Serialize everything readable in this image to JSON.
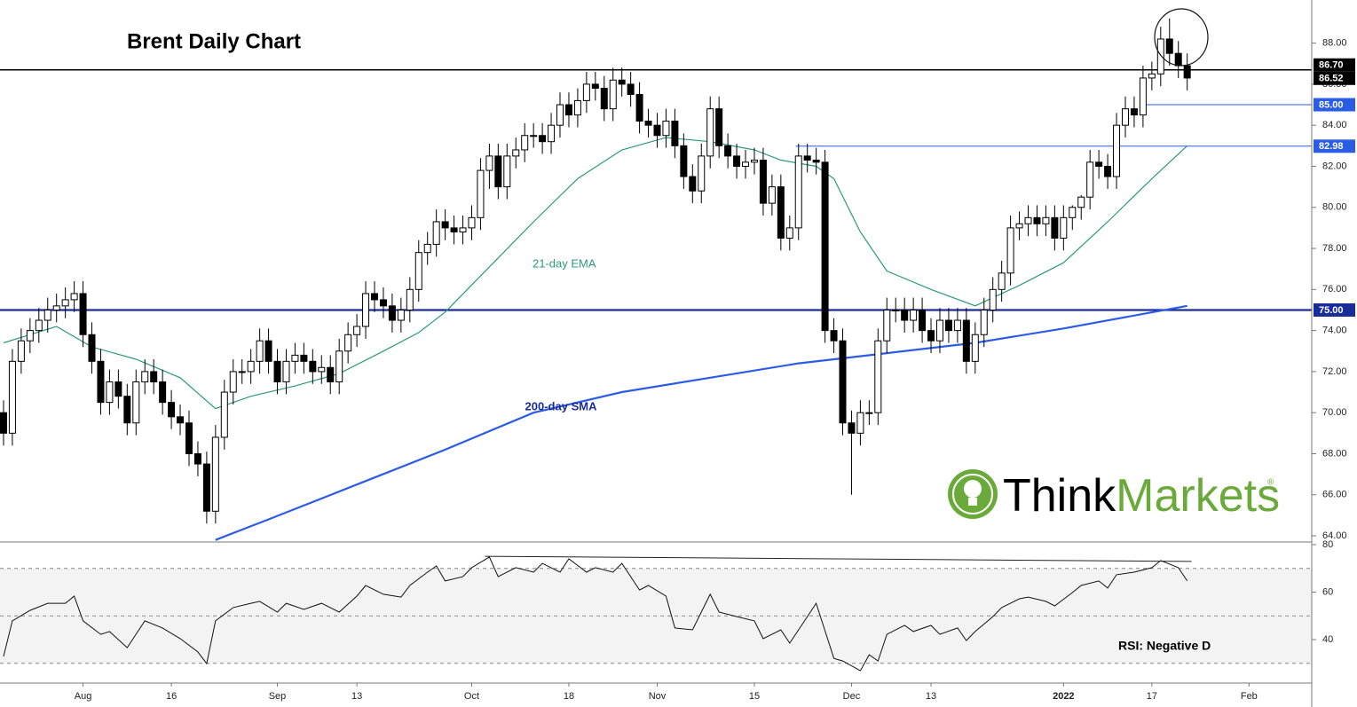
{
  "chart_data": [
    {
      "type": "candlestick",
      "title": "Brent Daily Chart",
      "open": [
        70,
        69,
        72.5,
        73.5,
        74,
        74.5,
        75,
        75.2,
        75.5,
        75.8,
        73.8,
        72.5,
        70.5,
        71.5,
        70.8,
        69.5,
        71.5,
        72,
        71.5,
        70.5,
        69.8,
        69.5,
        68,
        67.5,
        65.2,
        68.8,
        71,
        72,
        72,
        72.5,
        73.5,
        72.5,
        71.5,
        72.5,
        72.8,
        72.5,
        72,
        72.2,
        71.5,
        73,
        73.8,
        74.2,
        75.8,
        75.5,
        75.2,
        74.5,
        75,
        76,
        77.8,
        78.2,
        79.3,
        79,
        78.8,
        79,
        79.5,
        81.8,
        82.5,
        81,
        82.5,
        82.8,
        83.5,
        83.5,
        83.2,
        84,
        85,
        84.5,
        85.2,
        86,
        85.8,
        84.8,
        86.2,
        86,
        85.5,
        84.2,
        84,
        83.5,
        84.2,
        83,
        81.5,
        80.8,
        82.5,
        84.8,
        83,
        82.5,
        82,
        82.2,
        82.3,
        80.2,
        81,
        78.5,
        79,
        82.5,
        82.3,
        82.2,
        74,
        73.5,
        69.5,
        69,
        70,
        70,
        73.5,
        75,
        75,
        74.5,
        75,
        74,
        73.5,
        74.5,
        74,
        74.5,
        72.5,
        73.8,
        75,
        76,
        76.8,
        79,
        79.2,
        79.5,
        79.2,
        79.5,
        78.5,
        79.5,
        80,
        80.5,
        82.2,
        82,
        81.5,
        84,
        84.8,
        84.5,
        86.3,
        86.5,
        88.2,
        87.5,
        86.9
      ],
      "high": [
        70.6,
        73.1,
        74.1,
        74.6,
        75.1,
        75.6,
        75.8,
        76.1,
        76.4,
        76.4,
        74.4,
        73.1,
        72.1,
        72.1,
        71.4,
        72.1,
        72.6,
        72.6,
        72.1,
        71.1,
        70.4,
        70.1,
        68.6,
        68.1,
        69.4,
        71.6,
        72.6,
        72.6,
        73.1,
        74.1,
        74.1,
        73.1,
        73.1,
        73.4,
        73.4,
        73.1,
        72.8,
        72.8,
        73.6,
        74.4,
        74.8,
        76.4,
        76.4,
        76.1,
        75.8,
        75.6,
        76.6,
        78.4,
        78.8,
        79.9,
        79.9,
        79.6,
        79.6,
        80.1,
        82.4,
        83.1,
        83.1,
        83.1,
        83.4,
        84.1,
        84.1,
        84.1,
        84.6,
        85.6,
        85.6,
        85.8,
        86.6,
        86.6,
        86.4,
        86.8,
        86.8,
        86.6,
        86.1,
        84.8,
        84.6,
        84.8,
        84.8,
        83.6,
        82.1,
        83.1,
        85.4,
        85.4,
        83.6,
        83.1,
        82.8,
        82.9,
        82.9,
        81.6,
        81.6,
        79.6,
        83.1,
        83.1,
        82.9,
        82.8,
        74.6,
        74.1,
        70.1,
        70.6,
        70.6,
        74.1,
        75.6,
        75.6,
        75.6,
        75.6,
        75.6,
        74.6,
        75.1,
        75.1,
        75.1,
        75.1,
        74.4,
        75.6,
        76.6,
        77.4,
        79.6,
        79.8,
        80.1,
        80.1,
        80.1,
        80.1,
        80.1,
        80.1,
        80.6,
        82.8,
        82.8,
        82.6,
        84.6,
        85.4,
        85.4,
        86.9,
        87.1,
        88.8,
        89.2,
        88.1,
        87.5
      ],
      "low": [
        68.4,
        68.4,
        71.9,
        72.9,
        73.4,
        73.9,
        74.4,
        74.6,
        74.9,
        73.2,
        71.9,
        69.9,
        69.9,
        70.2,
        68.9,
        68.9,
        70.9,
        70.9,
        69.9,
        69.2,
        68.9,
        67.4,
        66.9,
        64.6,
        64.6,
        68.2,
        70.4,
        71.4,
        71.4,
        71.9,
        71.9,
        70.9,
        70.9,
        71.9,
        71.9,
        71.4,
        71.4,
        70.9,
        70.9,
        72.4,
        73.2,
        73.6,
        74.9,
        74.6,
        73.9,
        73.9,
        74.4,
        75.4,
        77.2,
        77.6,
        78.4,
        78.2,
        78.2,
        78.4,
        78.9,
        80.9,
        80.4,
        80.4,
        81.9,
        82.2,
        82.9,
        82.6,
        82.6,
        83.4,
        83.9,
        83.9,
        84.6,
        85.2,
        84.2,
        84.2,
        85.4,
        84.9,
        83.6,
        83.4,
        82.9,
        82.9,
        82.4,
        80.9,
        80.2,
        80.2,
        81.9,
        82.4,
        81.9,
        81.4,
        81.4,
        81.6,
        79.6,
        79.6,
        77.9,
        77.9,
        78.4,
        81.7,
        81.6,
        73.4,
        72.9,
        68.9,
        66,
        68.4,
        69.4,
        69.4,
        72.9,
        74.4,
        73.9,
        73.9,
        73.4,
        72.9,
        72.9,
        73.4,
        73.4,
        71.9,
        71.9,
        73.2,
        74.4,
        75.4,
        76.2,
        78.4,
        78.6,
        78.6,
        78.6,
        77.9,
        77.9,
        78.9,
        79.4,
        79.9,
        81.4,
        80.9,
        80.9,
        83.4,
        83.9,
        83.9,
        85.7,
        85.9,
        86.9,
        86.3,
        85.7
      ],
      "close": [
        69,
        72.5,
        73.5,
        74,
        74.5,
        75,
        75.2,
        75.5,
        75.8,
        73.8,
        72.5,
        70.5,
        71.5,
        70.8,
        69.5,
        71.5,
        72,
        71.5,
        70.5,
        69.8,
        69.5,
        68,
        67.5,
        65.2,
        68.8,
        71,
        72,
        72,
        72.5,
        73.5,
        72.5,
        71.5,
        72.5,
        72.8,
        72.5,
        72,
        72.2,
        71.5,
        73,
        73.8,
        74.2,
        75.8,
        75.5,
        75.2,
        74.5,
        75,
        76,
        77.8,
        78.2,
        79.3,
        79,
        78.8,
        79,
        79.5,
        81.8,
        82.5,
        81,
        82.5,
        82.8,
        83.5,
        83.5,
        83.2,
        84,
        85,
        84.5,
        85.2,
        86,
        85.8,
        84.8,
        86.2,
        86,
        85.5,
        84.2,
        84,
        83.5,
        84.2,
        83,
        81.5,
        80.8,
        82.5,
        84.8,
        83,
        82.5,
        82,
        82.2,
        82.3,
        80.2,
        81,
        78.5,
        79,
        82.5,
        82.3,
        82.2,
        74,
        73.5,
        69.5,
        69,
        70,
        70,
        73.5,
        75,
        75,
        74.5,
        75,
        74,
        73.5,
        74.5,
        74,
        74.5,
        72.5,
        73.8,
        75,
        76,
        76.8,
        79,
        79.2,
        79.5,
        79.2,
        79.5,
        78.5,
        79.5,
        80,
        80.5,
        82.2,
        82,
        81.5,
        84,
        84.8,
        84.5,
        86.3,
        86.5,
        88.2,
        87.5,
        86.9,
        86.3
      ],
      "up_color": "#ffffff",
      "down_color": "#000000",
      "xlim": [
        -0.4,
        148.1
      ],
      "ylim": [
        63.7,
        90.1
      ],
      "yticks": [
        {
          "value": 64,
          "label": "64.00"
        },
        {
          "value": 66,
          "label": "66.00"
        },
        {
          "value": 68,
          "label": "68.00"
        },
        {
          "value": 70,
          "label": "70.00"
        },
        {
          "value": 72,
          "label": "72.00"
        },
        {
          "value": 74,
          "label": "74.00"
        },
        {
          "value": 76,
          "label": "76.00"
        },
        {
          "value": 78,
          "label": "78.00"
        },
        {
          "value": 80,
          "label": "80.00"
        },
        {
          "value": 82,
          "label": "82.00"
        },
        {
          "value": 84,
          "label": "84.00"
        },
        {
          "value": 86,
          "label": "86.00"
        },
        {
          "value": 88,
          "label": "88.00"
        }
      ],
      "xticks": [
        {
          "value": 9,
          "label": "Aug"
        },
        {
          "value": 19,
          "label": "16"
        },
        {
          "value": 31,
          "label": "Sep"
        },
        {
          "value": 40,
          "label": "13"
        },
        {
          "value": 53,
          "label": "Oct"
        },
        {
          "value": 64,
          "label": "18"
        },
        {
          "value": 74,
          "label": "Nov"
        },
        {
          "value": 85,
          "label": "15"
        },
        {
          "value": 96,
          "label": "Dec"
        },
        {
          "value": 105,
          "label": "13"
        },
        {
          "value": 120,
          "label": "2022"
        },
        {
          "value": 130,
          "label": "17"
        },
        {
          "value": 141,
          "label": "Feb"
        }
      ],
      "series": [
        {
          "name": "21-day EMA",
          "color": "#2b9a7a",
          "x": [
            0,
            6,
            10,
            15,
            20,
            24,
            28,
            33,
            38,
            43,
            47,
            50,
            55,
            60,
            65,
            70,
            75,
            80,
            85,
            88,
            92,
            94,
            97,
            100,
            105,
            110,
            115,
            120,
            125,
            130,
            134
          ],
          "values": [
            73.4,
            74.2,
            73.2,
            72.6,
            71.7,
            70.2,
            70.8,
            71.3,
            71.9,
            73,
            73.9,
            74.9,
            77.1,
            79.3,
            81.4,
            82.8,
            83.4,
            83.2,
            82.8,
            82.3,
            82,
            81.4,
            78.8,
            76.9,
            76,
            75.2,
            76.2,
            77.3,
            79.3,
            81.4,
            83
          ]
        },
        {
          "name": "200-day SMA",
          "color": "#2b5ce6",
          "x": [
            24,
            30,
            40,
            50,
            60,
            70,
            80,
            90,
            100,
            110,
            120,
            134
          ],
          "values": [
            63.8,
            64.8,
            66.5,
            68.2,
            70,
            71,
            71.7,
            72.4,
            72.9,
            73.4,
            74.1,
            75.2
          ]
        }
      ],
      "levels": [
        {
          "value": 86.7,
          "label": "86.70",
          "color": "#000000",
          "width": 1.5
        },
        {
          "value": 86.52,
          "label": "86.52",
          "color": "#000000",
          "line": false
        },
        {
          "value": 85,
          "label": "85.00",
          "color": "#2b5ce6",
          "width": 1,
          "start": 129
        },
        {
          "value": 82.98,
          "label": "82.98",
          "color": "#2b5ce6",
          "width": 1,
          "start": 89.7
        },
        {
          "value": 75,
          "label": "75.00",
          "color": "#1a2c9a",
          "width": 2.2
        }
      ]
    },
    {
      "type": "line",
      "annotation": "RSI: Negative D",
      "color": "#111111",
      "x": [
        0,
        1,
        3,
        5,
        7,
        8,
        9,
        11,
        12,
        14,
        16,
        18,
        20,
        22,
        23,
        24,
        26,
        28,
        29,
        31,
        32,
        34,
        36,
        38,
        40,
        41,
        43,
        45,
        46,
        48,
        49,
        50,
        52,
        53,
        55,
        56,
        58,
        60,
        61,
        63,
        64,
        66,
        67,
        69,
        70,
        72,
        73,
        75,
        76,
        78,
        80,
        81,
        83,
        85,
        86,
        88,
        89,
        91,
        92,
        94,
        95,
        97,
        98,
        99,
        100,
        102,
        103,
        105,
        106,
        108,
        109,
        110,
        112,
        113,
        115,
        116,
        118,
        119,
        121,
        122,
        124,
        125,
        126,
        128,
        130,
        131,
        133,
        134
      ],
      "values": [
        32.9,
        47.9,
        52.3,
        55.3,
        55.3,
        58.3,
        47.9,
        42.2,
        43.4,
        36.6,
        47.9,
        44.9,
        40.4,
        34.8,
        29.9,
        47.9,
        53.5,
        55.3,
        56.1,
        51.6,
        55.3,
        52.7,
        55.3,
        51.6,
        58.3,
        62.8,
        59.1,
        57.9,
        62.8,
        68.4,
        71,
        64.7,
        66.5,
        70.3,
        74.8,
        66.5,
        70.3,
        68.4,
        72.1,
        68.4,
        74,
        68.4,
        70.3,
        68.4,
        72.1,
        60.9,
        62.8,
        58.3,
        44.9,
        44.1,
        59.1,
        51.6,
        49.7,
        47.9,
        40.4,
        44.1,
        38.5,
        49.7,
        55.3,
        32.1,
        31,
        26.9,
        33.6,
        31,
        42.2,
        46,
        43.4,
        46,
        42.2,
        44.9,
        39.6,
        43.4,
        49.7,
        53.5,
        57.2,
        57.9,
        56.1,
        54.2,
        59.8,
        62.8,
        64.7,
        61.7,
        67.3,
        68.4,
        70.3,
        73.3,
        70.3,
        64.7
      ],
      "xlim": [
        -0.4,
        148.1
      ],
      "ylim": [
        21.7,
        81.1
      ],
      "yticks": [
        40,
        60,
        80
      ],
      "dashed": [
        30,
        50,
        70
      ],
      "band": [
        30,
        70
      ],
      "trendline": {
        "x": [
          54.5,
          134.5
        ],
        "values": [
          75.1,
          72.9
        ]
      }
    }
  ],
  "logo": {
    "parts": [
      "Think",
      "Markets"
    ],
    "mark": "®"
  }
}
